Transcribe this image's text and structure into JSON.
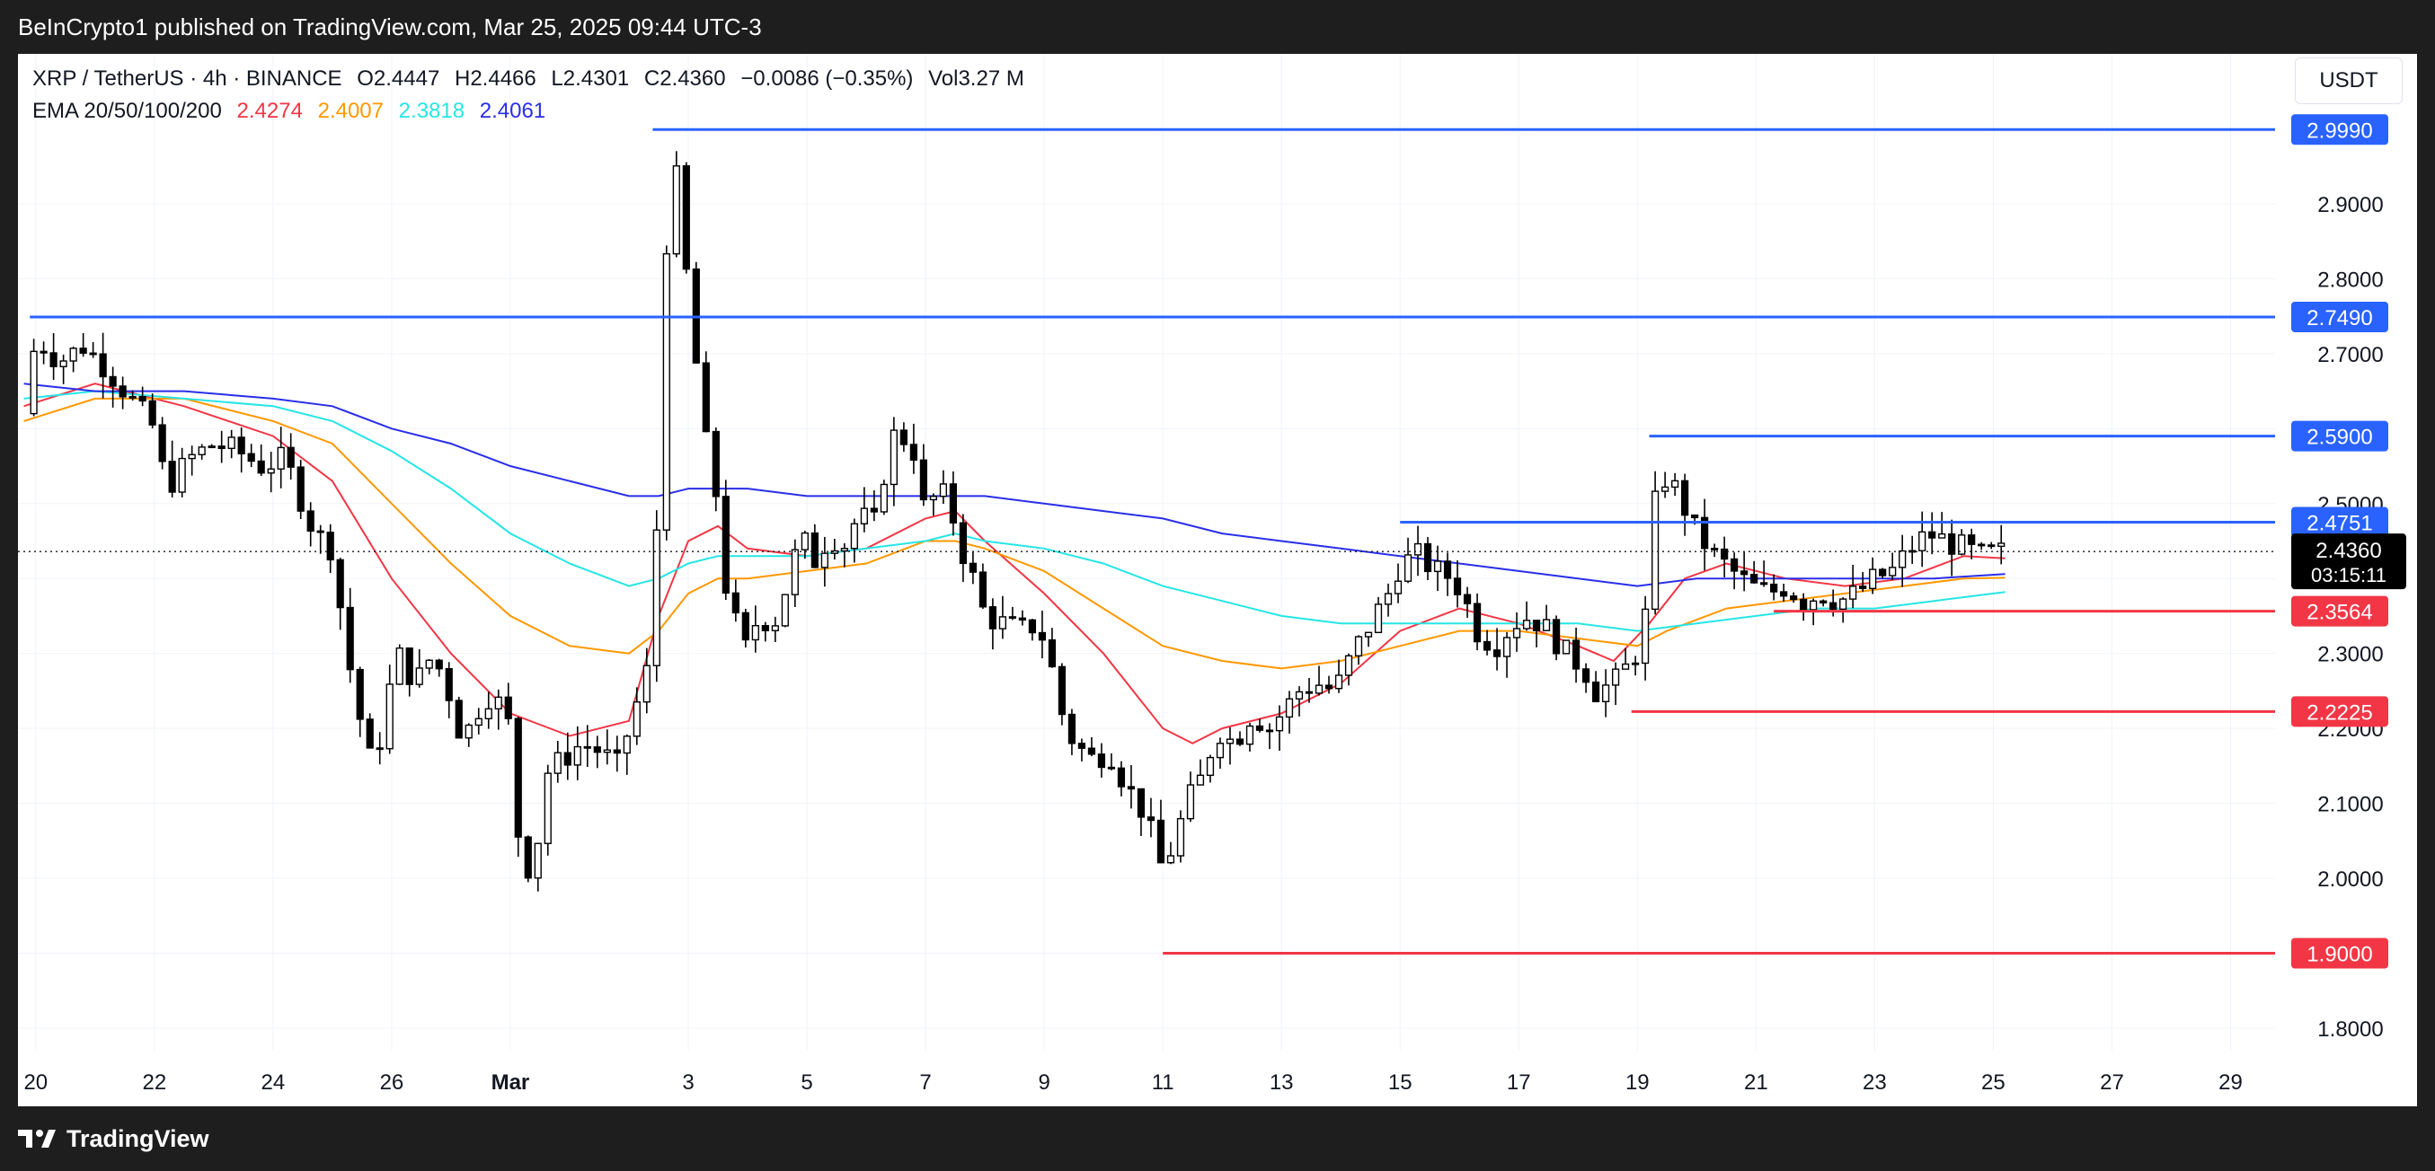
{
  "header": {
    "publisher_text": "BeInCrypto1 published on TradingView.com, Mar 25, 2025 09:44 UTC-3"
  },
  "footer": {
    "brand": "TradingView"
  },
  "legend": {
    "symbol": "XRP / TetherUS · 4h · BINANCE",
    "open": "O2.4447",
    "high": "H2.4466",
    "low": "L2.4301",
    "close": "C2.4360",
    "change": "−0.0086 (−0.35%)",
    "volume": "Vol3.27 M",
    "ema_label": "EMA 20/50/100/200",
    "ema_values": [
      {
        "value": "2.4274",
        "color": "#f23645"
      },
      {
        "value": "2.4007",
        "color": "#ff9800"
      },
      {
        "value": "2.3818",
        "color": "#26e5e5"
      },
      {
        "value": "2.4061",
        "color": "#2a2ee8"
      }
    ]
  },
  "currency_button": "USDT",
  "colors": {
    "up_candle": "#ffffff",
    "down_candle": "#000000",
    "resistance": "#2962ff",
    "support": "#f23645",
    "price_tag_bg": "#000000",
    "background": "#ffffff",
    "grid": "#f0f3fa"
  },
  "chart_data": {
    "type": "candlestick",
    "ylim": [
      1.77,
      3.1
    ],
    "y_ticks": [
      "1.8000",
      "1.9000",
      "2.0000",
      "2.1000",
      "2.2000",
      "2.3000",
      "2.4000",
      "2.5000",
      "2.6000",
      "2.7000",
      "2.8000",
      "2.9000"
    ],
    "x_ticks": [
      "20",
      "22",
      "24",
      "26",
      "Mar",
      "3",
      "5",
      "7",
      "9",
      "11",
      "13",
      "15",
      "17",
      "19",
      "21",
      "23",
      "25",
      "27",
      "29"
    ],
    "x_tick_days": [
      -9,
      -7,
      -5,
      -3,
      -1,
      2,
      4,
      6,
      8,
      10,
      12,
      14,
      16,
      18,
      20,
      22,
      24,
      26,
      28
    ],
    "x_domain_days": [
      -9.3,
      28.75
    ],
    "current_price": {
      "label": "2.4360",
      "countdown": "03:15:11",
      "value": 2.436
    },
    "levels": [
      {
        "value": 2.999,
        "label": "2.9990",
        "kind": "resistance",
        "from_day": 1.4
      },
      {
        "value": 2.749,
        "label": "2.7490",
        "kind": "resistance",
        "from_day": -9.1
      },
      {
        "value": 2.59,
        "label": "2.5900",
        "kind": "resistance",
        "from_day": 18.2
      },
      {
        "value": 2.4751,
        "label": "2.4751",
        "kind": "resistance",
        "from_day": 14.0
      },
      {
        "value": 2.3564,
        "label": "2.3564",
        "kind": "support",
        "from_day": 20.3
      },
      {
        "value": 2.2225,
        "label": "2.2225",
        "kind": "support",
        "from_day": 17.9
      },
      {
        "value": 1.9,
        "label": "1.9000",
        "kind": "support",
        "from_day": 10.0
      }
    ],
    "price_path": [
      [
        -9.2,
        2.62
      ],
      [
        -9.0,
        2.72
      ],
      [
        -8.6,
        2.69
      ],
      [
        -8.2,
        2.71
      ],
      [
        -7.8,
        2.68
      ],
      [
        -7.4,
        2.64
      ],
      [
        -7.0,
        2.6
      ],
      [
        -6.8,
        2.52
      ],
      [
        -6.4,
        2.56
      ],
      [
        -6.0,
        2.58
      ],
      [
        -5.6,
        2.57
      ],
      [
        -5.2,
        2.55
      ],
      [
        -4.8,
        2.56
      ],
      [
        -4.5,
        2.5
      ],
      [
        -4.3,
        2.46
      ],
      [
        -4.0,
        2.44
      ],
      [
        -3.9,
        2.38
      ],
      [
        -3.7,
        2.28
      ],
      [
        -3.5,
        2.2
      ],
      [
        -3.3,
        2.14
      ],
      [
        -3.1,
        2.23
      ],
      [
        -2.9,
        2.3
      ],
      [
        -2.6,
        2.26
      ],
      [
        -2.3,
        2.3
      ],
      [
        -2.0,
        2.24
      ],
      [
        -1.8,
        2.18
      ],
      [
        -1.6,
        2.22
      ],
      [
        -1.3,
        2.25
      ],
      [
        -1.0,
        2.2
      ],
      [
        -0.9,
        2.08
      ],
      [
        -0.8,
        2.02
      ],
      [
        -0.6,
        2.01
      ],
      [
        -0.4,
        2.14
      ],
      [
        -0.1,
        2.16
      ],
      [
        0.2,
        2.18
      ],
      [
        0.5,
        2.17
      ],
      [
        0.8,
        2.15
      ],
      [
        1.0,
        2.2
      ],
      [
        1.2,
        2.25
      ],
      [
        1.4,
        2.3
      ],
      [
        1.5,
        2.55
      ],
      [
        1.6,
        2.82
      ],
      [
        1.75,
        2.95
      ],
      [
        1.9,
        2.9
      ],
      [
        2.0,
        2.76
      ],
      [
        2.2,
        2.65
      ],
      [
        2.3,
        2.58
      ],
      [
        2.5,
        2.5
      ],
      [
        2.6,
        2.4
      ],
      [
        2.8,
        2.34
      ],
      [
        3.0,
        2.3
      ],
      [
        3.2,
        2.36
      ],
      [
        3.4,
        2.33
      ],
      [
        3.7,
        2.4
      ],
      [
        3.9,
        2.46
      ],
      [
        4.1,
        2.42
      ],
      [
        4.4,
        2.46
      ],
      [
        4.6,
        2.44
      ],
      [
        4.9,
        2.49
      ],
      [
        5.1,
        2.46
      ],
      [
        5.3,
        2.54
      ],
      [
        5.5,
        2.6
      ],
      [
        5.8,
        2.57
      ],
      [
        6.0,
        2.48
      ],
      [
        6.2,
        2.52
      ],
      [
        6.4,
        2.5
      ],
      [
        6.6,
        2.44
      ],
      [
        6.8,
        2.4
      ],
      [
        7.0,
        2.35
      ],
      [
        7.3,
        2.34
      ],
      [
        7.6,
        2.33
      ],
      [
        7.9,
        2.34
      ],
      [
        8.1,
        2.29
      ],
      [
        8.3,
        2.22
      ],
      [
        8.5,
        2.18
      ],
      [
        8.8,
        2.16
      ],
      [
        9.1,
        2.17
      ],
      [
        9.4,
        2.12
      ],
      [
        9.6,
        2.1
      ],
      [
        9.8,
        2.06
      ],
      [
        10.0,
        2.01
      ],
      [
        10.2,
        2.05
      ],
      [
        10.4,
        2.1
      ],
      [
        10.7,
        2.14
      ],
      [
        10.9,
        2.2
      ],
      [
        11.2,
        2.18
      ],
      [
        11.5,
        2.22
      ],
      [
        11.8,
        2.2
      ],
      [
        12.1,
        2.23
      ],
      [
        12.3,
        2.25
      ],
      [
        12.6,
        2.26
      ],
      [
        12.9,
        2.25
      ],
      [
        13.2,
        2.3
      ],
      [
        13.5,
        2.34
      ],
      [
        13.8,
        2.38
      ],
      [
        14.0,
        2.42
      ],
      [
        14.3,
        2.43
      ],
      [
        14.6,
        2.41
      ],
      [
        14.9,
        2.4
      ],
      [
        15.1,
        2.37
      ],
      [
        15.3,
        2.33
      ],
      [
        15.6,
        2.31
      ],
      [
        15.9,
        2.34
      ],
      [
        16.2,
        2.35
      ],
      [
        16.5,
        2.33
      ],
      [
        16.8,
        2.3
      ],
      [
        17.1,
        2.28
      ],
      [
        17.3,
        2.25
      ],
      [
        17.6,
        2.26
      ],
      [
        17.9,
        2.29
      ],
      [
        18.1,
        2.32
      ],
      [
        18.3,
        2.5
      ],
      [
        18.5,
        2.54
      ],
      [
        18.7,
        2.51
      ],
      [
        19.0,
        2.46
      ],
      [
        19.3,
        2.43
      ],
      [
        19.6,
        2.41
      ],
      [
        19.9,
        2.39
      ],
      [
        20.2,
        2.38
      ],
      [
        20.5,
        2.39
      ],
      [
        20.8,
        2.37
      ],
      [
        21.1,
        2.38
      ],
      [
        21.4,
        2.37
      ],
      [
        21.7,
        2.38
      ],
      [
        22.0,
        2.4
      ],
      [
        22.3,
        2.41
      ],
      [
        22.6,
        2.44
      ],
      [
        22.9,
        2.46
      ],
      [
        23.2,
        2.45
      ],
      [
        23.5,
        2.44
      ],
      [
        23.8,
        2.43
      ],
      [
        24.2,
        2.436
      ]
    ],
    "ema_lines": [
      {
        "name": "EMA 20",
        "color": "#f23645",
        "points": [
          [
            -9.2,
            2.63
          ],
          [
            -8.0,
            2.66
          ],
          [
            -6.5,
            2.63
          ],
          [
            -5.0,
            2.59
          ],
          [
            -4.0,
            2.53
          ],
          [
            -3.0,
            2.4
          ],
          [
            -2.0,
            2.3
          ],
          [
            -1.0,
            2.22
          ],
          [
            0.0,
            2.19
          ],
          [
            1.0,
            2.21
          ],
          [
            1.5,
            2.35
          ],
          [
            2.0,
            2.45
          ],
          [
            2.5,
            2.47
          ],
          [
            3.0,
            2.44
          ],
          [
            4.0,
            2.43
          ],
          [
            5.0,
            2.44
          ],
          [
            6.0,
            2.48
          ],
          [
            6.5,
            2.49
          ],
          [
            7.0,
            2.45
          ],
          [
            8.0,
            2.38
          ],
          [
            9.0,
            2.3
          ],
          [
            10.0,
            2.2
          ],
          [
            10.5,
            2.18
          ],
          [
            11.0,
            2.2
          ],
          [
            12.0,
            2.22
          ],
          [
            13.0,
            2.26
          ],
          [
            14.0,
            2.33
          ],
          [
            15.0,
            2.36
          ],
          [
            16.0,
            2.34
          ],
          [
            17.0,
            2.31
          ],
          [
            17.6,
            2.29
          ],
          [
            18.2,
            2.34
          ],
          [
            18.8,
            2.4
          ],
          [
            19.5,
            2.42
          ],
          [
            20.5,
            2.4
          ],
          [
            21.5,
            2.39
          ],
          [
            22.5,
            2.4
          ],
          [
            23.5,
            2.43
          ],
          [
            24.2,
            2.427
          ]
        ]
      },
      {
        "name": "EMA 50",
        "color": "#ff9800",
        "points": [
          [
            -9.2,
            2.61
          ],
          [
            -8.0,
            2.64
          ],
          [
            -6.5,
            2.64
          ],
          [
            -5.0,
            2.61
          ],
          [
            -4.0,
            2.58
          ],
          [
            -3.0,
            2.5
          ],
          [
            -2.0,
            2.42
          ],
          [
            -1.0,
            2.35
          ],
          [
            0.0,
            2.31
          ],
          [
            1.0,
            2.3
          ],
          [
            1.5,
            2.33
          ],
          [
            2.0,
            2.38
          ],
          [
            2.5,
            2.4
          ],
          [
            3.0,
            2.4
          ],
          [
            4.0,
            2.41
          ],
          [
            5.0,
            2.42
          ],
          [
            6.0,
            2.45
          ],
          [
            6.5,
            2.45
          ],
          [
            7.0,
            2.44
          ],
          [
            8.0,
            2.41
          ],
          [
            9.0,
            2.36
          ],
          [
            10.0,
            2.31
          ],
          [
            11.0,
            2.29
          ],
          [
            12.0,
            2.28
          ],
          [
            13.0,
            2.29
          ],
          [
            14.0,
            2.31
          ],
          [
            15.0,
            2.33
          ],
          [
            16.0,
            2.33
          ],
          [
            17.0,
            2.32
          ],
          [
            18.0,
            2.31
          ],
          [
            18.5,
            2.33
          ],
          [
            19.5,
            2.36
          ],
          [
            20.5,
            2.37
          ],
          [
            21.5,
            2.38
          ],
          [
            22.5,
            2.39
          ],
          [
            23.5,
            2.4
          ],
          [
            24.2,
            2.401
          ]
        ]
      },
      {
        "name": "EMA 100",
        "color": "#26e5e5",
        "points": [
          [
            -9.2,
            2.64
          ],
          [
            -8.0,
            2.65
          ],
          [
            -6.5,
            2.64
          ],
          [
            -5.0,
            2.63
          ],
          [
            -4.0,
            2.61
          ],
          [
            -3.0,
            2.57
          ],
          [
            -2.0,
            2.52
          ],
          [
            -1.0,
            2.46
          ],
          [
            0.0,
            2.42
          ],
          [
            1.0,
            2.39
          ],
          [
            1.5,
            2.4
          ],
          [
            2.0,
            2.42
          ],
          [
            2.5,
            2.43
          ],
          [
            3.0,
            2.43
          ],
          [
            4.0,
            2.43
          ],
          [
            5.0,
            2.44
          ],
          [
            6.0,
            2.45
          ],
          [
            6.5,
            2.46
          ],
          [
            7.0,
            2.45
          ],
          [
            8.0,
            2.44
          ],
          [
            9.0,
            2.42
          ],
          [
            10.0,
            2.39
          ],
          [
            11.0,
            2.37
          ],
          [
            12.0,
            2.35
          ],
          [
            13.0,
            2.34
          ],
          [
            14.0,
            2.34
          ],
          [
            15.0,
            2.34
          ],
          [
            16.0,
            2.34
          ],
          [
            17.0,
            2.34
          ],
          [
            18.0,
            2.33
          ],
          [
            19.0,
            2.34
          ],
          [
            20.0,
            2.35
          ],
          [
            21.0,
            2.36
          ],
          [
            22.0,
            2.36
          ],
          [
            23.0,
            2.37
          ],
          [
            24.2,
            2.382
          ]
        ]
      },
      {
        "name": "EMA 200",
        "color": "#2a2ee8",
        "points": [
          [
            -9.2,
            2.66
          ],
          [
            -8.0,
            2.65
          ],
          [
            -6.5,
            2.65
          ],
          [
            -5.0,
            2.64
          ],
          [
            -4.0,
            2.63
          ],
          [
            -3.0,
            2.6
          ],
          [
            -2.0,
            2.58
          ],
          [
            -1.0,
            2.55
          ],
          [
            0.0,
            2.53
          ],
          [
            1.0,
            2.51
          ],
          [
            1.5,
            2.51
          ],
          [
            2.0,
            2.52
          ],
          [
            3.0,
            2.52
          ],
          [
            4.0,
            2.51
          ],
          [
            5.0,
            2.51
          ],
          [
            6.0,
            2.51
          ],
          [
            7.0,
            2.51
          ],
          [
            8.0,
            2.5
          ],
          [
            9.0,
            2.49
          ],
          [
            10.0,
            2.48
          ],
          [
            11.0,
            2.46
          ],
          [
            12.0,
            2.45
          ],
          [
            13.0,
            2.44
          ],
          [
            14.0,
            2.43
          ],
          [
            15.0,
            2.42
          ],
          [
            16.0,
            2.41
          ],
          [
            17.0,
            2.4
          ],
          [
            18.0,
            2.39
          ],
          [
            19.0,
            2.4
          ],
          [
            20.0,
            2.4
          ],
          [
            21.0,
            2.4
          ],
          [
            22.0,
            2.4
          ],
          [
            23.0,
            2.4
          ],
          [
            24.2,
            2.406
          ]
        ]
      }
    ]
  }
}
